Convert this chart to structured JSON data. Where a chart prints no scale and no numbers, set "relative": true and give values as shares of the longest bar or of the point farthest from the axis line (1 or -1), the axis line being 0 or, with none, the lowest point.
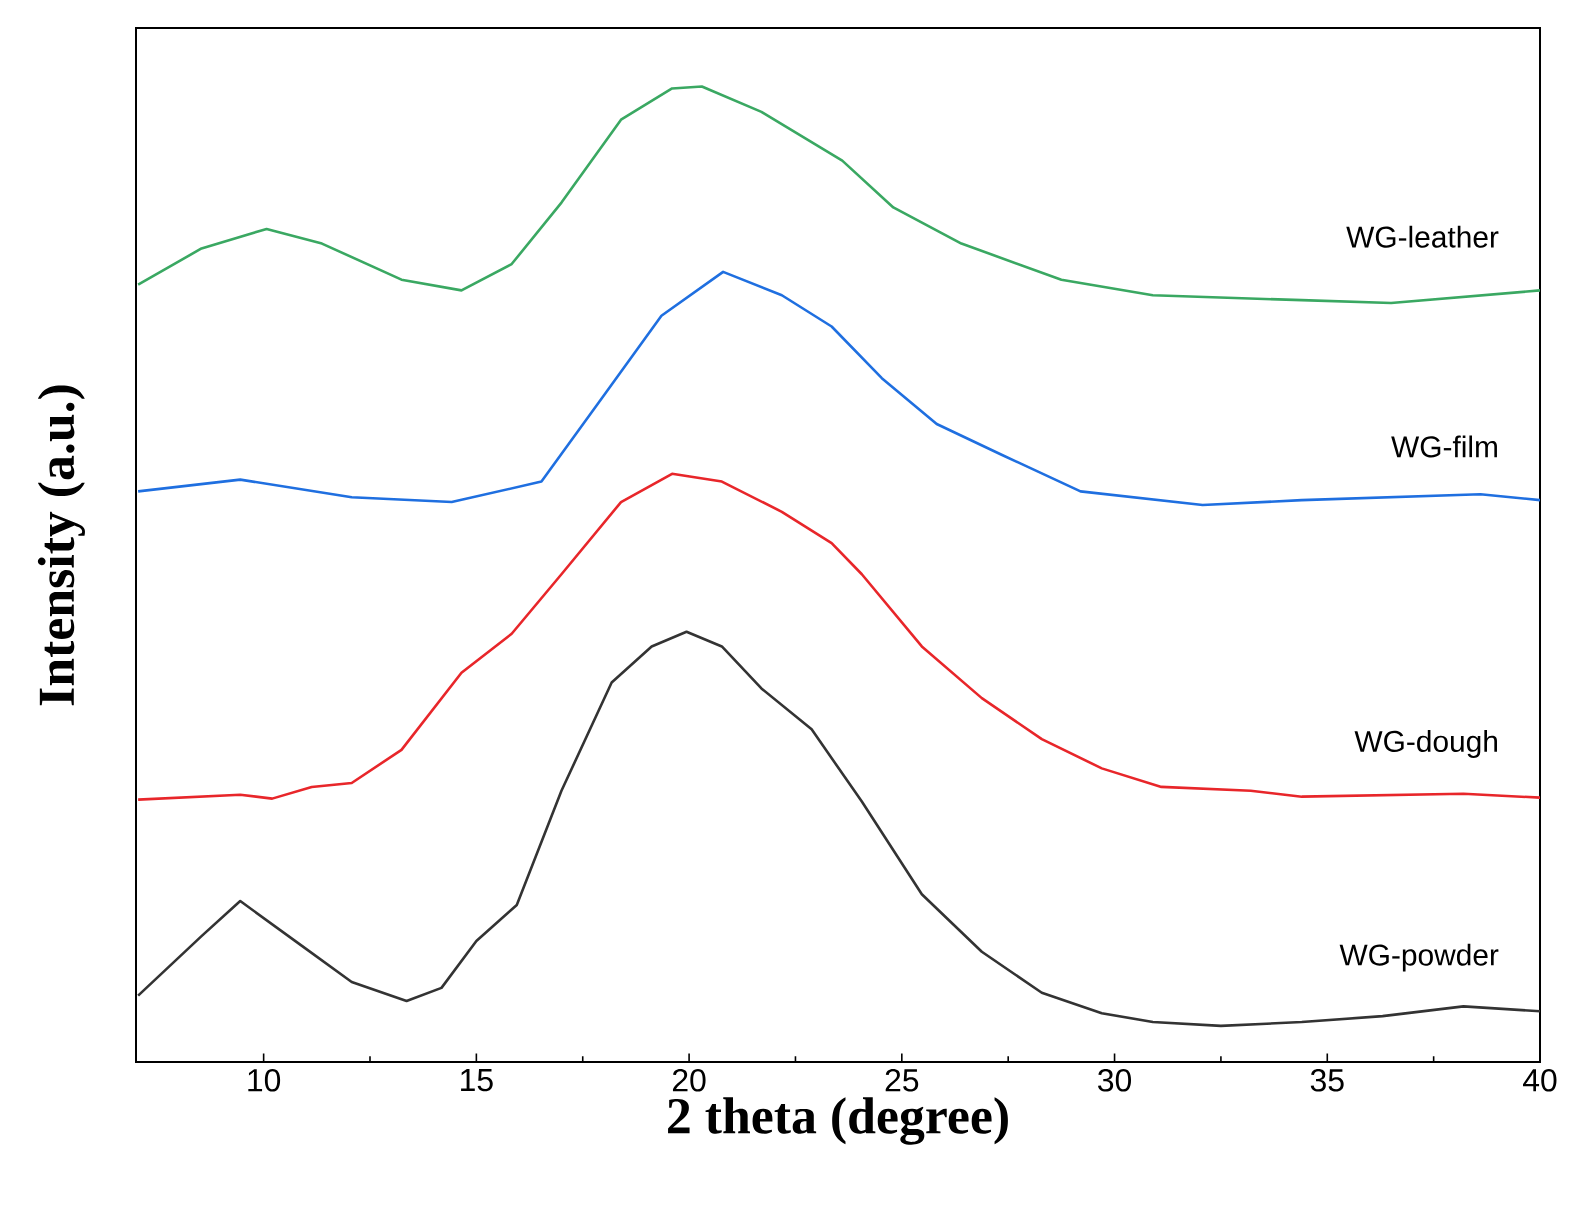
{
  "chart_data": {
    "type": "line",
    "xlabel": "2 theta (degree)",
    "ylabel": "Intensity (a.u.)",
    "relative": true,
    "xlim": [
      7,
      40
    ],
    "xticks": [
      10,
      15,
      20,
      25,
      30,
      35,
      40
    ],
    "tick_labels": "x",
    "series": [
      {
        "name": "WG-leather",
        "color": "#3aa862",
        "x": [
          7.05,
          8.54,
          10.07,
          11.37,
          13.24,
          14.65,
          15.83,
          17.0,
          18.4,
          19.6,
          20.3,
          21.7,
          23.6,
          24.8,
          26.4,
          28.75,
          30.9,
          34.4,
          36.5,
          40
        ],
        "values": [
          0.797,
          0.834,
          0.854,
          0.839,
          0.802,
          0.791,
          0.818,
          0.881,
          0.966,
          0.998,
          1,
          0.974,
          0.924,
          0.876,
          0.839,
          0.802,
          0.786,
          0.781,
          0.778,
          0.791
        ]
      },
      {
        "name": "WG-film",
        "color": "#1f6fe0",
        "x": [
          7.05,
          9.45,
          12.07,
          14.42,
          16.53,
          17.94,
          19.35,
          20.8,
          22.18,
          23.35,
          24.53,
          25.82,
          27.37,
          29.2,
          32.07,
          34.4,
          38.6,
          40
        ],
        "values": [
          0.585,
          0.597,
          0.579,
          0.574,
          0.595,
          0.68,
          0.765,
          0.81,
          0.786,
          0.754,
          0.701,
          0.654,
          0.622,
          0.585,
          0.571,
          0.576,
          0.582,
          0.576
        ]
      },
      {
        "name": "WG-dough",
        "color": "#e8262a",
        "x": [
          7.05,
          9.45,
          10.2,
          11.13,
          12.07,
          13.24,
          14.65,
          15.83,
          17.0,
          18.4,
          19.6,
          20.77,
          22.18,
          23.35,
          24.06,
          25.47,
          26.88,
          28.29,
          29.7,
          31.1,
          33.2,
          34.4,
          38.2,
          40
        ],
        "values": [
          0.269,
          0.274,
          0.27,
          0.282,
          0.286,
          0.32,
          0.399,
          0.439,
          0.5,
          0.574,
          0.603,
          0.595,
          0.564,
          0.532,
          0.5,
          0.426,
          0.373,
          0.331,
          0.301,
          0.282,
          0.278,
          0.272,
          0.275,
          0.271
        ]
      },
      {
        "name": "WG-powder",
        "color": "#333333",
        "x": [
          7.05,
          8.54,
          9.45,
          10.9,
          12.07,
          13.36,
          14.18,
          15.0,
          15.95,
          17.0,
          18.18,
          19.12,
          19.94,
          20.77,
          21.7,
          22.88,
          24.06,
          25.47,
          26.88,
          28.29,
          29.7,
          30.9,
          32.5,
          34.4,
          36.3,
          38.2,
          40
        ],
        "values": [
          0.068,
          0.129,
          0.165,
          0.119,
          0.082,
          0.0625,
          0.076,
          0.124,
          0.161,
          0.278,
          0.389,
          0.426,
          0.441,
          0.426,
          0.383,
          0.341,
          0.267,
          0.172,
          0.113,
          0.071,
          0.05,
          0.041,
          0.037,
          0.041,
          0.047,
          0.057,
          0.052
        ]
      }
    ]
  }
}
